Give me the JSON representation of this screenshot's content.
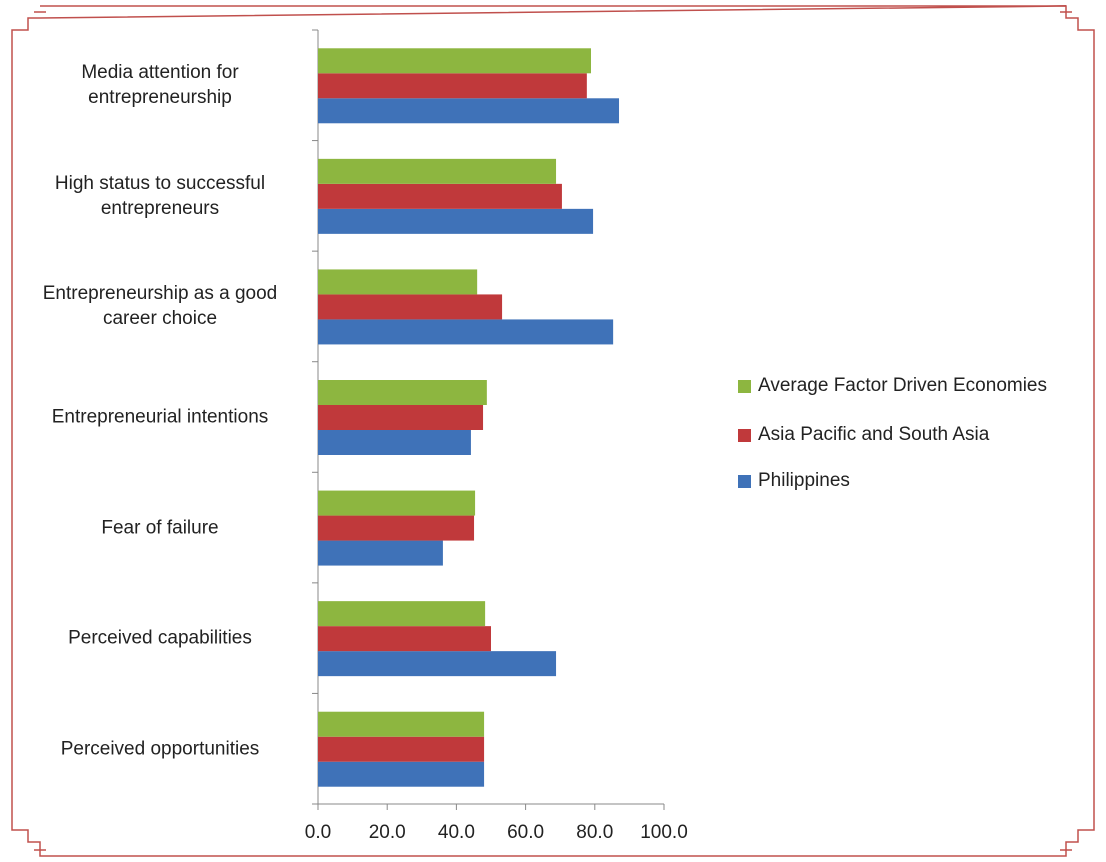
{
  "chart_data": {
    "type": "bar",
    "orientation": "horizontal",
    "categories": [
      "Perceived opportunities",
      "Perceived capabilities",
      "Fear of failure",
      "Entrepreneurial intentions",
      "Entrepreneurship as a good\ncareer choice",
      "High status to successful\nentrepreneurs",
      "Media attention for\nentrepreneurship"
    ],
    "series": [
      {
        "name": "Philippines",
        "color": "#3f72b8",
        "values": [
          48.0,
          68.8,
          36.1,
          44.2,
          85.3,
          79.5,
          87.0
        ]
      },
      {
        "name": "Asia Pacific and South Asia",
        "color": "#c0393b",
        "values": [
          48.0,
          50.0,
          45.1,
          47.7,
          53.2,
          70.5,
          77.7
        ]
      },
      {
        "name": "Average Factor Driven Economies",
        "color": "#8db640",
        "values": [
          48.0,
          48.3,
          45.4,
          48.8,
          46.0,
          68.8,
          78.9
        ]
      }
    ],
    "xlim": [
      0,
      100
    ],
    "xticks": [
      {
        "value": 0,
        "label": "0.0"
      },
      {
        "value": 20,
        "label": "20.0"
      },
      {
        "value": 40,
        "label": "40.0"
      },
      {
        "value": 60,
        "label": "60.0"
      },
      {
        "value": 80,
        "label": "80.0"
      },
      {
        "value": 100,
        "label": "100.0"
      }
    ],
    "legend": "right"
  }
}
